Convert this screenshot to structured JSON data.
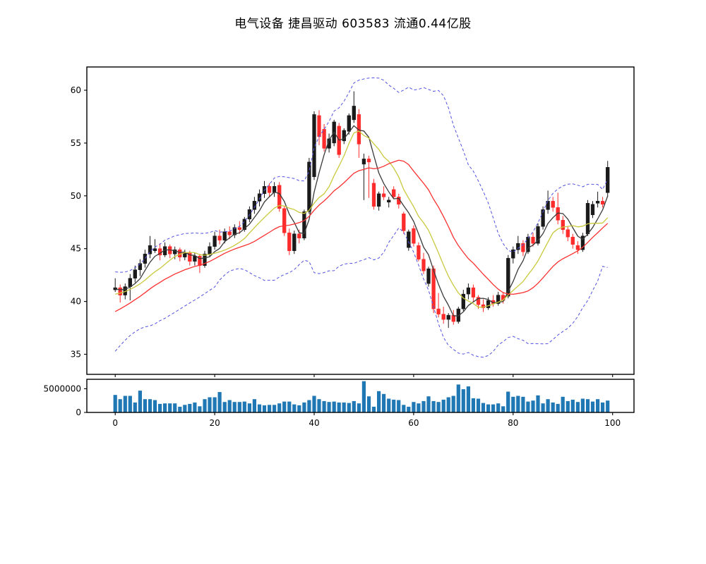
{
  "chart_data": {
    "type": "candlestick+volume",
    "title": "电气设备 捷昌驱动 603583 流通0.44亿股",
    "legend_position": "none",
    "grid": false,
    "x_axis": {
      "range": [
        -5.7,
        104.3
      ],
      "ticks": [
        0,
        20,
        40,
        60,
        80,
        100
      ]
    },
    "price_axis": {
      "range": [
        33.1,
        62.2
      ],
      "ticks": [
        35,
        40,
        45,
        50,
        55,
        60
      ]
    },
    "volume_axis": {
      "range": [
        0,
        7000000
      ],
      "ticks": [
        0,
        5000000
      ],
      "tick_labels": [
        "0",
        "5000000"
      ]
    },
    "ohlc": [
      [
        41.1,
        42.2,
        40.9,
        41.3
      ],
      [
        41.3,
        41.6,
        39.9,
        40.6
      ],
      [
        40.6,
        41.7,
        40.2,
        41.4
      ],
      [
        41.4,
        42.6,
        40.1,
        42.2
      ],
      [
        42.2,
        43.4,
        41.8,
        43.0
      ],
      [
        43.0,
        44.0,
        42.4,
        43.6
      ],
      [
        43.6,
        44.9,
        43.2,
        44.5
      ],
      [
        44.5,
        46.2,
        44.1,
        45.3
      ],
      [
        44.8,
        45.9,
        44.6,
        45.0
      ],
      [
        45.0,
        45.5,
        43.9,
        44.4
      ],
      [
        44.4,
        45.6,
        44.2,
        45.2
      ],
      [
        45.2,
        45.4,
        44.1,
        44.5
      ],
      [
        44.5,
        45.2,
        44.0,
        44.9
      ],
      [
        44.9,
        45.1,
        43.8,
        44.2
      ],
      [
        44.2,
        44.9,
        43.9,
        44.6
      ],
      [
        44.6,
        44.8,
        43.4,
        43.8
      ],
      [
        43.8,
        44.6,
        43.4,
        44.3
      ],
      [
        44.3,
        44.5,
        42.7,
        43.4
      ],
      [
        43.4,
        44.8,
        43.2,
        44.5
      ],
      [
        44.5,
        45.6,
        44.2,
        45.2
      ],
      [
        45.2,
        46.6,
        44.9,
        46.2
      ],
      [
        46.2,
        46.8,
        45.4,
        45.8
      ],
      [
        45.8,
        46.9,
        45.5,
        46.6
      ],
      [
        46.6,
        47.1,
        45.9,
        46.3
      ],
      [
        46.3,
        47.3,
        46.0,
        47.0
      ],
      [
        47.0,
        47.6,
        46.4,
        46.8
      ],
      [
        46.8,
        48.0,
        46.6,
        47.8
      ],
      [
        47.8,
        49.0,
        47.5,
        48.7
      ],
      [
        48.7,
        49.9,
        48.3,
        49.5
      ],
      [
        49.5,
        50.6,
        49.0,
        50.2
      ],
      [
        50.2,
        51.4,
        49.8,
        50.9
      ],
      [
        50.9,
        51.2,
        49.9,
        50.3
      ],
      [
        50.3,
        51.3,
        49.9,
        50.9
      ],
      [
        51.0,
        51.3,
        48.5,
        48.8
      ],
      [
        48.8,
        49.0,
        46.2,
        46.5
      ],
      [
        46.5,
        46.9,
        44.4,
        44.8
      ],
      [
        44.8,
        46.7,
        44.5,
        46.4
      ],
      [
        46.4,
        46.8,
        45.5,
        46.0
      ],
      [
        46.0,
        48.7,
        45.8,
        48.5
      ],
      [
        48.5,
        53.6,
        48.3,
        53.2
      ],
      [
        51.8,
        58.0,
        51.5,
        57.7
      ],
      [
        57.6,
        58.1,
        54.8,
        55.6
      ],
      [
        56.3,
        56.8,
        54.2,
        54.5
      ],
      [
        54.5,
        55.9,
        54.1,
        55.4
      ],
      [
        55.0,
        57.2,
        54.7,
        57.0
      ],
      [
        56.6,
        56.9,
        53.6,
        53.9
      ],
      [
        55.2,
        56.4,
        54.9,
        56.2
      ],
      [
        56.1,
        57.8,
        55.8,
        57.6
      ],
      [
        57.2,
        59.9,
        56.9,
        58.5
      ],
      [
        57.7,
        58.2,
        53.6,
        54.9
      ],
      [
        53.0,
        54.0,
        49.6,
        53.5
      ],
      [
        53.5,
        53.8,
        49.8,
        53.2
      ],
      [
        51.2,
        51.6,
        48.7,
        49.0
      ],
      [
        49.0,
        50.4,
        48.6,
        50.2
      ],
      [
        50.2,
        50.9,
        49.6,
        49.9
      ],
      [
        49.4,
        49.9,
        48.9,
        49.6
      ],
      [
        50.6,
        50.9,
        49.7,
        49.9
      ],
      [
        49.9,
        50.2,
        48.8,
        49.2
      ],
      [
        48.3,
        48.5,
        46.4,
        46.7
      ],
      [
        45.1,
        46.8,
        44.8,
        46.6
      ],
      [
        46.9,
        47.2,
        45.2,
        45.5
      ],
      [
        45.3,
        45.6,
        43.8,
        44.0
      ],
      [
        44.0,
        44.6,
        42.6,
        42.9
      ],
      [
        41.7,
        43.3,
        41.4,
        43.1
      ],
      [
        43.1,
        43.4,
        38.9,
        39.3
      ],
      [
        39.3,
        40.8,
        38.5,
        38.8
      ],
      [
        38.8,
        39.5,
        37.9,
        38.3
      ],
      [
        38.3,
        38.9,
        37.5,
        38.7
      ],
      [
        38.7,
        39.2,
        37.8,
        38.1
      ],
      [
        38.1,
        39.5,
        37.9,
        39.3
      ],
      [
        39.3,
        41.1,
        39.1,
        40.7
      ],
      [
        40.7,
        41.7,
        40.2,
        41.3
      ],
      [
        41.3,
        41.6,
        40.0,
        40.4
      ],
      [
        40.4,
        40.6,
        39.3,
        39.7
      ],
      [
        39.7,
        40.2,
        39.0,
        39.4
      ],
      [
        39.4,
        40.4,
        39.2,
        40.1
      ],
      [
        40.1,
        40.6,
        39.5,
        39.8
      ],
      [
        39.8,
        40.9,
        39.6,
        40.6
      ],
      [
        40.6,
        40.9,
        39.8,
        40.1
      ],
      [
        40.5,
        44.4,
        40.3,
        44.1
      ],
      [
        44.1,
        45.2,
        43.6,
        44.9
      ],
      [
        44.9,
        46.2,
        44.5,
        45.5
      ],
      [
        45.5,
        45.8,
        44.3,
        44.7
      ],
      [
        44.7,
        46.4,
        44.5,
        46.1
      ],
      [
        46.1,
        46.5,
        45.2,
        45.5
      ],
      [
        45.5,
        47.4,
        45.3,
        47.1
      ],
      [
        47.1,
        49.0,
        46.8,
        48.7
      ],
      [
        48.7,
        50.5,
        48.3,
        49.5
      ],
      [
        49.5,
        49.9,
        48.5,
        48.9
      ],
      [
        48.9,
        50.3,
        47.3,
        47.7
      ],
      [
        47.7,
        48.1,
        46.4,
        46.8
      ],
      [
        46.8,
        47.1,
        45.7,
        46.1
      ],
      [
        46.1,
        46.4,
        45.0,
        45.4
      ],
      [
        45.3,
        45.7,
        44.5,
        44.9
      ],
      [
        44.9,
        46.5,
        44.7,
        46.2
      ],
      [
        46.4,
        49.6,
        46.2,
        49.3
      ],
      [
        48.2,
        49.5,
        47.9,
        49.2
      ],
      [
        49.3,
        50.4,
        48.9,
        49.5
      ],
      [
        49.5,
        49.9,
        48.9,
        49.2
      ],
      [
        50.3,
        53.3,
        49.9,
        52.7
      ]
    ],
    "volume": [
      3700000,
      2800000,
      3500000,
      3500000,
      2100000,
      4600000,
      2800000,
      2800000,
      2600000,
      1800000,
      1900000,
      1900000,
      1900000,
      1200000,
      1600000,
      1800000,
      2100000,
      1300000,
      2800000,
      3200000,
      3200000,
      4300000,
      2200000,
      2600000,
      2200000,
      2200000,
      2300000,
      1900000,
      2800000,
      1700000,
      1500000,
      1600000,
      1600000,
      1900000,
      2300000,
      2300000,
      1700000,
      1500000,
      2100000,
      2600000,
      3500000,
      2800000,
      2400000,
      2200000,
      2300000,
      2100000,
      2100000,
      2000000,
      2400000,
      1900000,
      6600000,
      3400000,
      1200000,
      4500000,
      3900000,
      2900000,
      2700000,
      2600000,
      1600000,
      1200000,
      2200000,
      1900000,
      2400000,
      3400000,
      2400000,
      2200000,
      2700000,
      3200000,
      3500000,
      5900000,
      4900000,
      5500000,
      3000000,
      2900000,
      2000000,
      1700000,
      1700000,
      1900000,
      1300000,
      4400000,
      3300000,
      3500000,
      3300000,
      2300000,
      2500000,
      3600000,
      1900000,
      2800000,
      2100000,
      1800000,
      3300000,
      2400000,
      2700000,
      2200000,
      2900000,
      2800000,
      2300000,
      2800000,
      2100000,
      2500000
    ],
    "indicators": {
      "ma_periods": [
        5,
        10,
        20
      ],
      "bollinger": {
        "period": 20,
        "mult": 2
      },
      "pre_history_closes": [
        35.2,
        35.6,
        36.0,
        36.4,
        36.8,
        37.2,
        37.6,
        38.0,
        38.4,
        38.8,
        39.2,
        39.6,
        39.9,
        40.2,
        40.5,
        40.8,
        41.0,
        41.1,
        41.2,
        41.3
      ]
    },
    "colors": {
      "up_candle": "#1a1a1a",
      "down_candle": "#fd2c2c",
      "ma5": "#3a3a3a",
      "ma10": "#c9c93e",
      "ma20": "#fb3030",
      "bollinger_band": "#5252e0",
      "volume_bar": "#1f77b4",
      "axis_frame": "#000000",
      "tick_label": "#000000",
      "background": "#ffffff"
    }
  }
}
